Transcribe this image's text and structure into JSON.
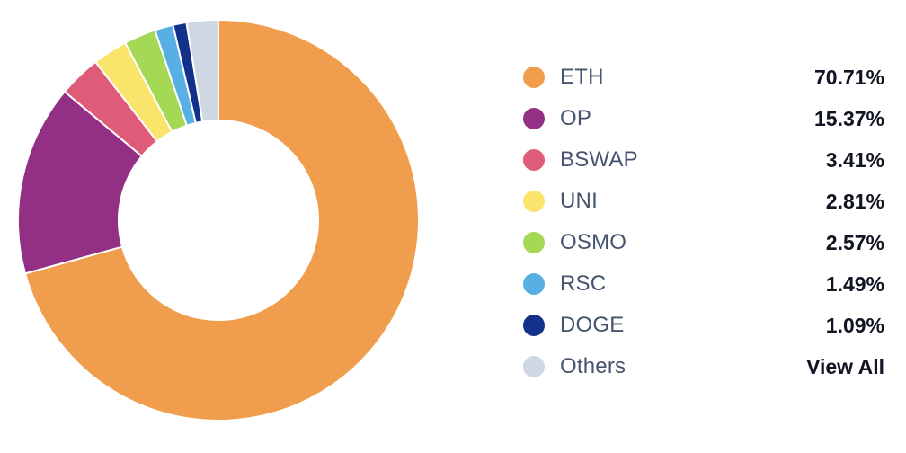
{
  "chart_data": {
    "type": "pie",
    "style": "donut",
    "legend_placement": "right",
    "slices": [
      {
        "label": "ETH",
        "value": 70.71,
        "display": "70.71%",
        "color": "#f09e4d"
      },
      {
        "label": "OP",
        "value": 15.37,
        "display": "15.37%",
        "color": "#932f85"
      },
      {
        "label": "BSWAP",
        "value": 3.41,
        "display": "3.41%",
        "color": "#de5c78"
      },
      {
        "label": "UNI",
        "value": 2.81,
        "display": "2.81%",
        "color": "#fae46b"
      },
      {
        "label": "OSMO",
        "value": 2.57,
        "display": "2.57%",
        "color": "#a5d854"
      },
      {
        "label": "RSC",
        "value": 1.49,
        "display": "1.49%",
        "color": "#58afe3"
      },
      {
        "label": "DOGE",
        "value": 1.09,
        "display": "1.09%",
        "color": "#13318a"
      },
      {
        "label": "Others",
        "value": 2.55,
        "display": "View All",
        "color": "#cfd7e3"
      }
    ]
  }
}
